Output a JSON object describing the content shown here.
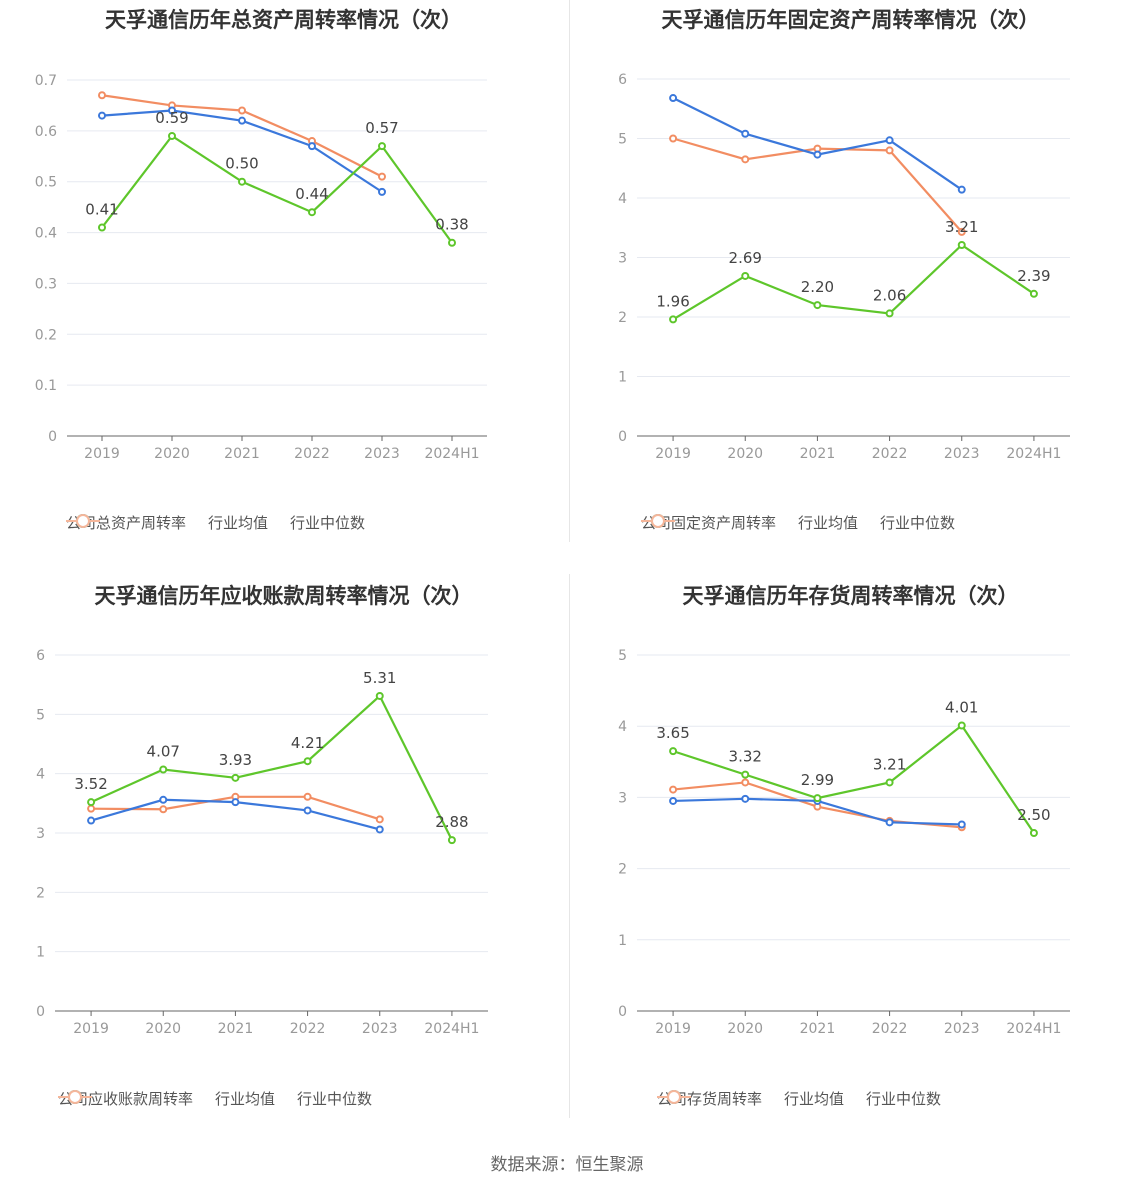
{
  "footer": "数据来源：恒生聚源",
  "colors": {
    "company": "#5ec62b",
    "avg": "#3b78db",
    "median": "#f28d62"
  },
  "charts": [
    {
      "chart_data": {
        "type": "line",
        "title": "天孚通信历年总资产周转率情况（次）",
        "categories": [
          "2019",
          "2020",
          "2021",
          "2022",
          "2023",
          "2024H1"
        ],
        "ylim": [
          0,
          0.7
        ],
        "yticks": [
          "0",
          "0.1",
          "0.2",
          "0.3",
          "0.4",
          "0.5",
          "0.6",
          "0.7"
        ],
        "series": [
          {
            "name": "公司总资产周转率",
            "values": [
              0.41,
              0.59,
              0.5,
              0.44,
              0.57,
              0.38
            ],
            "labels": [
              "0.41",
              "0.59",
              "0.50",
              "0.44",
              "0.57",
              "0.38"
            ]
          },
          {
            "name": "行业均值",
            "values": [
              0.63,
              0.64,
              0.62,
              0.57,
              0.48,
              null
            ]
          },
          {
            "name": "行业中位数",
            "values": [
              0.67,
              0.65,
              0.64,
              0.58,
              0.51,
              null
            ]
          }
        ],
        "legend": "bottom",
        "grid": true
      }
    },
    {
      "chart_data": {
        "type": "line",
        "title": "天孚通信历年固定资产周转率情况（次）",
        "categories": [
          "2019",
          "2020",
          "2021",
          "2022",
          "2023",
          "2024H1"
        ],
        "ylim": [
          0,
          6
        ],
        "yticks": [
          "0",
          "1",
          "2",
          "3",
          "4",
          "5",
          "6"
        ],
        "series": [
          {
            "name": "公司固定资产周转率",
            "values": [
              1.96,
              2.69,
              2.2,
              2.06,
              3.21,
              2.39
            ],
            "labels": [
              "1.96",
              "2.69",
              "2.20",
              "2.06",
              "3.21",
              "2.39"
            ]
          },
          {
            "name": "行业均值",
            "values": [
              5.68,
              5.08,
              4.73,
              4.97,
              4.14,
              null
            ]
          },
          {
            "name": "行业中位数",
            "values": [
              5.0,
              4.65,
              4.83,
              4.8,
              3.43,
              null
            ]
          }
        ],
        "legend": "bottom",
        "grid": true
      }
    },
    {
      "chart_data": {
        "type": "line",
        "title": "天孚通信历年应收账款周转率情况（次）",
        "categories": [
          "2019",
          "2020",
          "2021",
          "2022",
          "2023",
          "2024H1"
        ],
        "ylim": [
          0,
          6
        ],
        "yticks": [
          "0",
          "1",
          "2",
          "3",
          "4",
          "5",
          "6"
        ],
        "series": [
          {
            "name": "公司应收账款周转率",
            "values": [
              3.52,
              4.07,
              3.93,
              4.21,
              5.31,
              2.88
            ],
            "labels": [
              "3.52",
              "4.07",
              "3.93",
              "4.21",
              "5.31",
              "2.88"
            ]
          },
          {
            "name": "行业均值",
            "values": [
              3.21,
              3.56,
              3.52,
              3.38,
              3.06,
              null
            ]
          },
          {
            "name": "行业中位数",
            "values": [
              3.41,
              3.4,
              3.61,
              3.61,
              3.23,
              null
            ]
          }
        ],
        "legend": "bottom",
        "grid": true
      }
    },
    {
      "chart_data": {
        "type": "line",
        "title": "天孚通信历年存货周转率情况（次）",
        "categories": [
          "2019",
          "2020",
          "2021",
          "2022",
          "2023",
          "2024H1"
        ],
        "ylim": [
          0,
          5
        ],
        "yticks": [
          "0",
          "1",
          "2",
          "3",
          "4",
          "5"
        ],
        "series": [
          {
            "name": "公司存货周转率",
            "values": [
              3.65,
              3.32,
              2.99,
              3.21,
              4.01,
              2.5
            ],
            "labels": [
              "3.65",
              "3.32",
              "2.99",
              "3.21",
              "4.01",
              "2.50"
            ]
          },
          {
            "name": "行业均值",
            "values": [
              2.95,
              2.98,
              2.95,
              2.65,
              2.62,
              null
            ]
          },
          {
            "name": "行业中位数",
            "values": [
              3.11,
              3.21,
              2.87,
              2.67,
              2.58,
              null
            ]
          }
        ],
        "legend": "bottom",
        "grid": true
      }
    }
  ]
}
